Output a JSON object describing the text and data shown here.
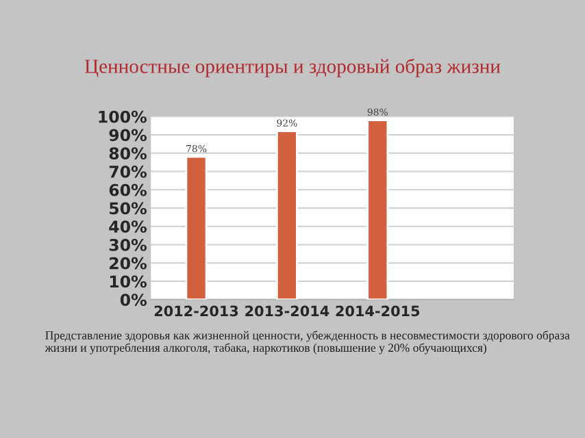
{
  "chart_data": {
    "type": "bar",
    "title": "Ценностные ориентиры и здоровый образ жизни",
    "categories": [
      "2012-2013",
      "2013-2014",
      "2014-2015",
      null
    ],
    "values": [
      78,
      92,
      98,
      null
    ],
    "color": "#d2603f",
    "ylim": [
      0,
      100
    ],
    "yticks": [
      {
        "value": 0,
        "label": "0%"
      },
      {
        "value": 10,
        "label": "10%"
      },
      {
        "value": 20,
        "label": "20%"
      },
      {
        "value": 30,
        "label": "30%"
      },
      {
        "value": 40,
        "label": "40%"
      },
      {
        "value": 50,
        "label": "50%"
      },
      {
        "value": 60,
        "label": "60%"
      },
      {
        "value": 70,
        "label": "70%"
      },
      {
        "value": 80,
        "label": "80%"
      },
      {
        "value": 90,
        "label": "90%"
      },
      {
        "value": 100,
        "label": "100%"
      }
    ],
    "value_labels": [
      "78%",
      "92%",
      "98%",
      null
    ],
    "grid": "y",
    "legend": false,
    "annotations": [
      "Представление здоровья как жизненной ценности, убежденность в несовместимости здорового образа жизни и употребления алкоголя, табака, наркотиков (повышение у 20% обучающихся)"
    ]
  }
}
